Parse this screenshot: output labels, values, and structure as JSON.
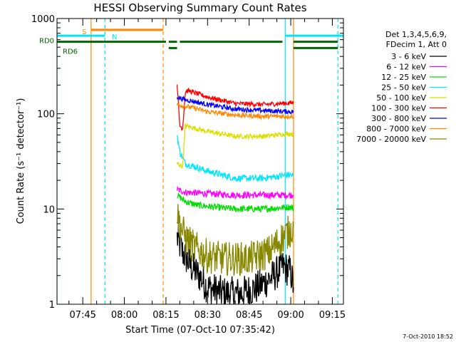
{
  "chart_data": {
    "type": "line",
    "title": "HESSI Observing Summary Count Rates",
    "xlabel": "Start Time (07-Oct-10 07:35:42)",
    "ylabel": "Count Rate (s⁻¹ detector⁻¹)",
    "xlim": [
      "07:35:42",
      "09:19:00"
    ],
    "ylim": [
      1,
      1000
    ],
    "y_scale": "log",
    "x_ticks": [
      "07:45",
      "08:00",
      "08:15",
      "08:30",
      "08:45",
      "09:00",
      "09:15"
    ],
    "y_ticks": [
      "1",
      "10",
      "100",
      "1000"
    ],
    "grid": false,
    "legend_position": "right",
    "legend_header": [
      "Det 1,3,4,5,6,9,",
      "FDecim 1, Att 0"
    ],
    "footer_timestamp": "7-Oct-2010 18:52",
    "series": [
      {
        "name": "3 - 6 keV",
        "color": "#000000",
        "x": [
          "08:19",
          "08:21",
          "08:24",
          "08:27",
          "08:30",
          "08:36",
          "08:42",
          "08:48",
          "08:54",
          "08:57",
          "09:00",
          "09:01"
        ],
        "y": [
          5,
          3.5,
          2.5,
          2,
          1.5,
          1.3,
          1.3,
          1.5,
          2,
          2.5,
          2.2,
          1.5
        ]
      },
      {
        "name": "6 - 12 keV",
        "color": "#ff00ff",
        "x": [
          "08:19",
          "08:22",
          "08:30",
          "08:40",
          "08:50",
          "09:00",
          "09:01"
        ],
        "y": [
          16,
          15,
          14.5,
          14,
          14,
          14,
          14
        ]
      },
      {
        "name": "12 - 25 keV",
        "color": "#00dd00",
        "x": [
          "08:19",
          "08:22",
          "08:26",
          "08:32",
          "08:40",
          "08:50",
          "09:00",
          "09:01"
        ],
        "y": [
          14,
          12,
          11,
          10.5,
          10,
          10,
          10.5,
          10
        ]
      },
      {
        "name": "25 - 50 keV",
        "color": "#00e5ff",
        "x": [
          "08:19",
          "08:20",
          "08:22",
          "08:30",
          "08:40",
          "08:50",
          "09:00",
          "09:01"
        ],
        "y": [
          60,
          40,
          30,
          25,
          21,
          21,
          23,
          22
        ]
      },
      {
        "name": "50 - 100 keV",
        "color": "#dddd00",
        "x": [
          "08:19",
          "08:21",
          "08:22",
          "08:30",
          "08:40",
          "08:50",
          "09:00",
          "09:01"
        ],
        "y": [
          30,
          28,
          75,
          65,
          58,
          58,
          62,
          60
        ]
      },
      {
        "name": "100 - 300 keV",
        "color": "#ff0000",
        "x": [
          "08:19",
          "08:20",
          "08:21",
          "08:22",
          "08:23",
          "08:30",
          "08:40",
          "08:50",
          "09:00",
          "09:01"
        ],
        "y": [
          210,
          75,
          70,
          170,
          175,
          150,
          128,
          125,
          130,
          130
        ]
      },
      {
        "name": "300 - 800 keV",
        "color": "#0000ff",
        "x": [
          "08:19",
          "08:22",
          "08:25",
          "08:30",
          "08:40",
          "08:50",
          "09:00",
          "09:01"
        ],
        "y": [
          150,
          140,
          135,
          125,
          112,
          108,
          105,
          105
        ]
      },
      {
        "name": "800 - 7000 keV",
        "color": "#ff8800",
        "x": [
          "08:19",
          "08:22",
          "08:25",
          "08:30",
          "08:40",
          "08:50",
          "09:00",
          "09:01"
        ],
        "y": [
          125,
          120,
          115,
          105,
          97,
          94,
          94,
          94
        ]
      },
      {
        "name": "7000 - 20000 keV",
        "color": "#888800",
        "x": [
          "08:19",
          "08:20",
          "08:22",
          "08:25",
          "08:30",
          "08:36",
          "08:45",
          "08:52",
          "08:57",
          "09:00",
          "09:01"
        ],
        "y": [
          9,
          7,
          5,
          4,
          3.2,
          3,
          3,
          3.5,
          5,
          6,
          6.5
        ]
      }
    ],
    "flags": [
      {
        "label": "S",
        "color": "#ff8800",
        "y": 760,
        "segments": [
          [
            "07:48",
            "08:14"
          ]
        ]
      },
      {
        "label": "N",
        "color": "#00e5ff",
        "y": 660,
        "segments": [
          [
            "07:35:42",
            "07:53"
          ],
          [
            "08:58",
            "09:19"
          ]
        ]
      },
      {
        "label": "RD0",
        "color": "#006600",
        "y": 570,
        "segments": [
          [
            "07:35:42",
            "08:15"
          ],
          [
            "08:16",
            "08:19"
          ],
          [
            "08:20",
            "08:57"
          ],
          [
            "09:01",
            "09:17"
          ]
        ]
      },
      {
        "label": "RD6",
        "color": "#006600",
        "y": 490,
        "segments": [
          [
            "08:16",
            "08:19"
          ],
          [
            "09:01",
            "09:17"
          ]
        ]
      }
    ],
    "vertical_lines": [
      {
        "x": "07:35:42",
        "color": "#00e5ff",
        "style": "solid"
      },
      {
        "x": "07:48",
        "color": "#ff8800",
        "style": "solid"
      },
      {
        "x": "07:53",
        "color": "#00e5ff",
        "style": "dashed"
      },
      {
        "x": "08:14",
        "color": "#ff8800",
        "style": "dashed"
      },
      {
        "x": "08:58",
        "color": "#00e5ff",
        "style": "solid"
      },
      {
        "x": "09:01",
        "color": "#ff8800",
        "style": "solid"
      },
      {
        "x": "09:17",
        "color": "#00e5ff",
        "style": "dashed"
      }
    ]
  }
}
